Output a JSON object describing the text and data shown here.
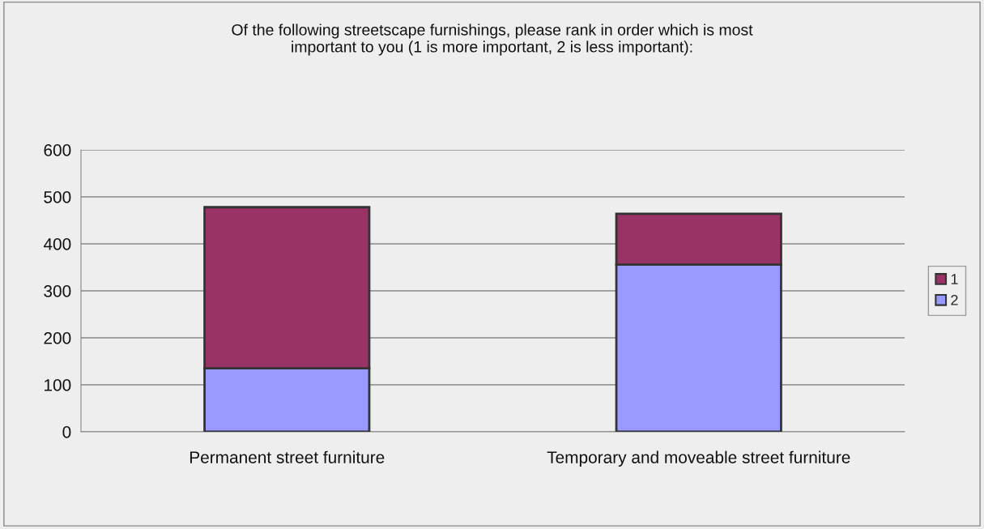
{
  "chart_data": {
    "type": "bar",
    "title": "Of the following streetscape furnishings, please rank in order which is most\nimportant to you (1 is more important, 2 is less important):",
    "categories": [
      "Permanent street furniture",
      "Temporary and moveable street furniture"
    ],
    "stacked": true,
    "series": [
      {
        "name": "2",
        "color": "#9999ff",
        "values": [
          135,
          356
        ]
      },
      {
        "name": "1",
        "color": "#993366",
        "values": [
          343,
          108
        ]
      }
    ],
    "ylim": [
      0,
      600
    ],
    "yticks": [
      0,
      100,
      200,
      300,
      400,
      500,
      600
    ],
    "grid": "y",
    "legend": "right"
  }
}
